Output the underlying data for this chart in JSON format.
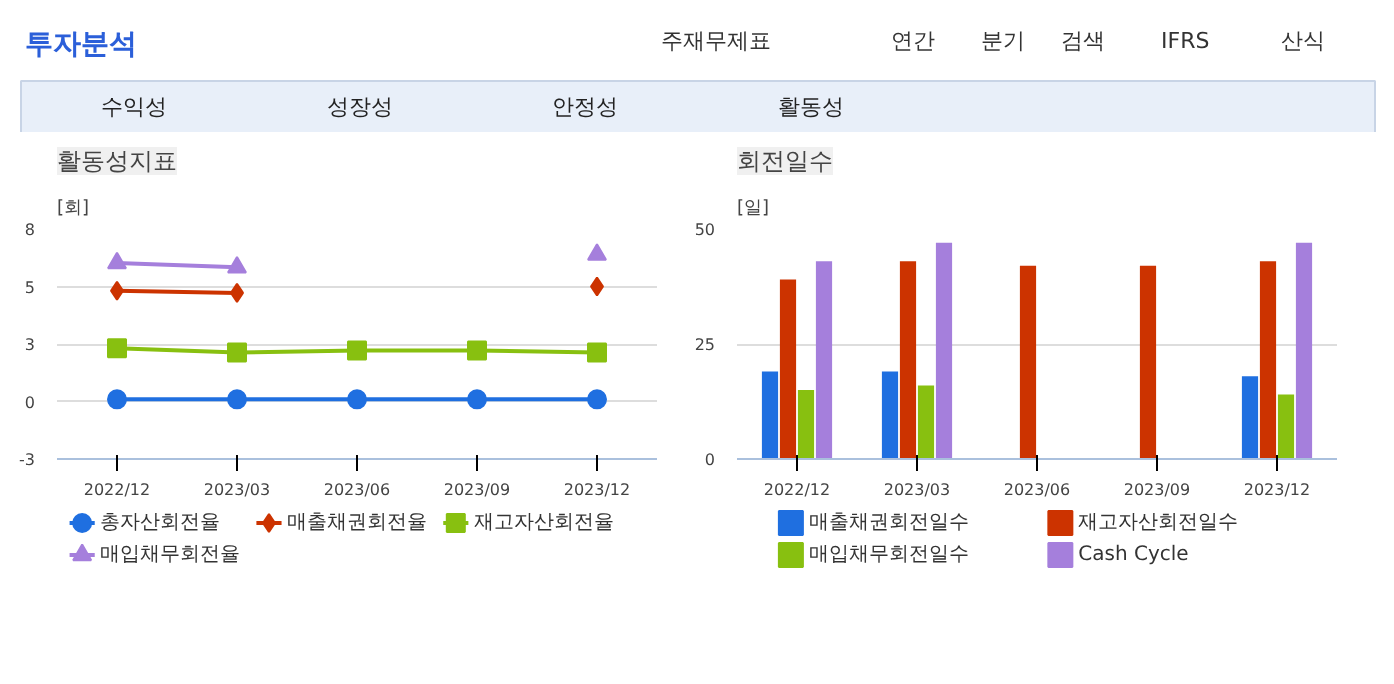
{
  "chart_data": [
    {
      "type": "other",
      "title": "투자분석",
      "annotations": [
        "주재무제표",
        "연간",
        "분기",
        "검색",
        "IFRS",
        "산식",
        "수익성",
        "성장성",
        "안정성",
        "활동성"
      ]
    },
    {
      "type": "line",
      "title": "활동성지표",
      "ylabel": "[회]",
      "categories": [
        "2022/12",
        "2023/03",
        "2023/06",
        "2023/09",
        "2023/12"
      ],
      "ylim": [
        -2.7,
        8.1
      ],
      "yticks": [
        {
          "value": -2.7,
          "label": "-3"
        },
        0,
        {
          "value": 2.7,
          "label": "3"
        },
        {
          "value": 5.4,
          "label": "5"
        },
        {
          "value": 8.1,
          "label": "8"
        }
      ],
      "grid": "y",
      "legend": "bottom",
      "series": [
        {
          "name": "총자산회전율",
          "color": "#1f6fe0",
          "marker": "circle",
          "values": [
            0.1,
            0.1,
            0.1,
            0.1,
            0.1
          ]
        },
        {
          "name": "매출채권회전율",
          "color": "#cc3300",
          "marker": "diamond",
          "values": [
            5.2,
            5.1,
            null,
            null,
            5.4
          ]
        },
        {
          "name": "재고자산회전율",
          "color": "#88c010",
          "marker": "square",
          "values": [
            2.5,
            2.3,
            2.4,
            2.4,
            2.3
          ]
        },
        {
          "name": "매입채무회전율",
          "color": "#a57fdc",
          "marker": "triangle",
          "values": [
            6.5,
            6.3,
            null,
            null,
            6.9
          ]
        }
      ]
    },
    {
      "type": "bar",
      "title": "회전일수",
      "ylabel": "[일]",
      "categories": [
        "2022/12",
        "2023/03",
        "2023/06",
        "2023/09",
        "2023/12"
      ],
      "ylim": [
        0,
        50
      ],
      "yticks": [
        0,
        25,
        50
      ],
      "grid": "y",
      "legend": "bottom",
      "series": [
        {
          "name": "매출채권회전일수",
          "color": "#1f6fe0",
          "values": [
            19,
            19,
            null,
            null,
            18
          ]
        },
        {
          "name": "재고자산회전일수",
          "color": "#cc3300",
          "values": [
            39,
            43,
            42,
            42,
            43
          ]
        },
        {
          "name": "매입채무회전일수",
          "color": "#88c010",
          "values": [
            15,
            16,
            null,
            null,
            14
          ]
        },
        {
          "name": "Cash Cycle",
          "color": "#a57fdc",
          "values": [
            43,
            47,
            null,
            null,
            47
          ]
        }
      ]
    }
  ]
}
